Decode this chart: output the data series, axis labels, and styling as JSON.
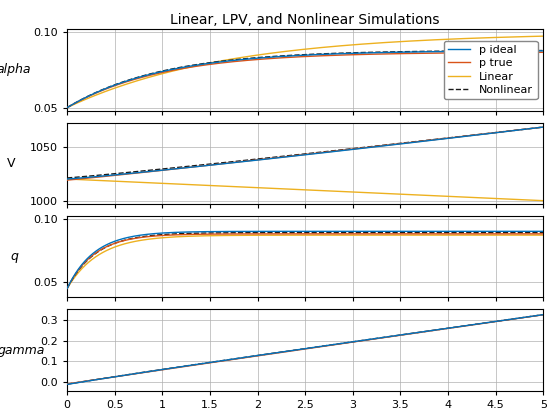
{
  "title": "Linear, LPV, and Nonlinear Simulations",
  "xlim": [
    0,
    5
  ],
  "subplots": [
    "alpha",
    "V",
    "q",
    "gamma"
  ],
  "ylims": {
    "alpha": [
      0.048,
      0.102
    ],
    "V": [
      997,
      1072
    ],
    "q": [
      0.038,
      0.102
    ],
    "gamma": [
      -0.04,
      0.35
    ]
  },
  "yticks": {
    "alpha": [
      0.05,
      0.1
    ],
    "V": [
      1000,
      1050
    ],
    "q": [
      0.05,
      0.1
    ],
    "gamma": [
      0.0,
      0.1,
      0.2,
      0.3
    ]
  },
  "legend": {
    "p_ideal": "p ideal",
    "p_true": "p true",
    "linear": "Linear",
    "nonlinear": "Nonlinear"
  },
  "colors": {
    "p_ideal": "#0072BD",
    "p_true": "#D95319",
    "linear": "#EDB120",
    "nonlinear": "#1a1a1a"
  },
  "background": "#ffffff",
  "grid_color": "#b0b0b0"
}
